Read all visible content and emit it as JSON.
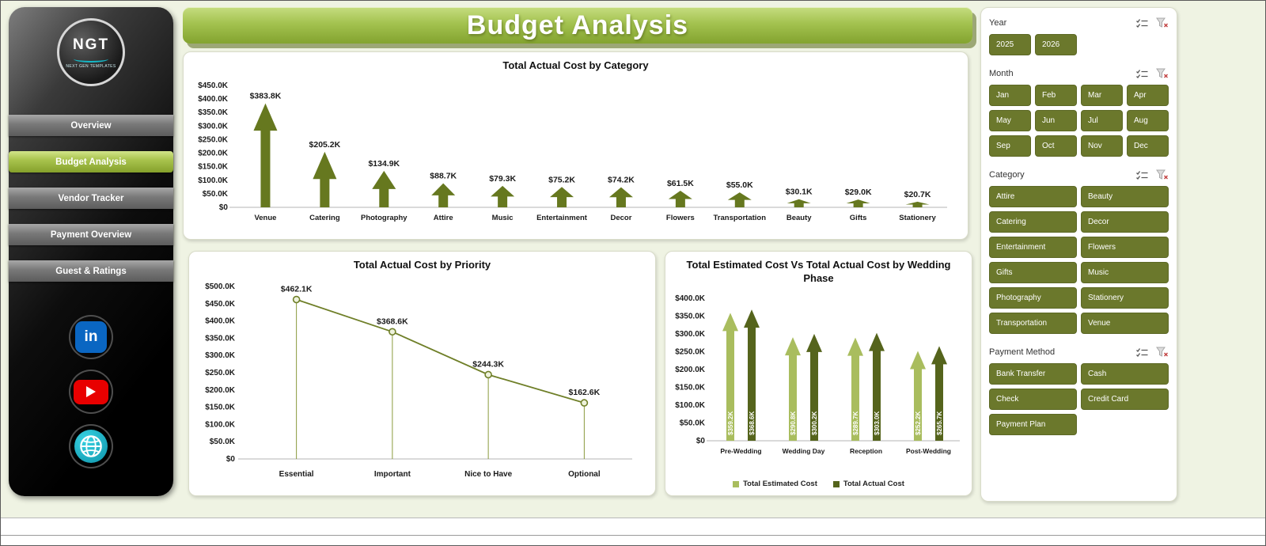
{
  "app": {
    "title": "Budget Analysis"
  },
  "sidebar": {
    "logo": {
      "text": "NGT",
      "tagline": "NEXT GEN TEMPLATES"
    },
    "items": [
      {
        "label": "Overview",
        "active": false
      },
      {
        "label": "Budget Analysis",
        "active": true
      },
      {
        "label": "Vendor Tracker",
        "active": false
      },
      {
        "label": "Payment Overview",
        "active": false
      },
      {
        "label": "Guest & Ratings",
        "active": false
      }
    ],
    "social": [
      {
        "name": "linkedin"
      },
      {
        "name": "youtube"
      },
      {
        "name": "web"
      }
    ]
  },
  "chart_data": [
    {
      "type": "bar",
      "title": "Total Actual Cost by Category",
      "categories": [
        "Venue",
        "Catering",
        "Photography",
        "Attire",
        "Music",
        "Entertainment",
        "Decor",
        "Flowers",
        "Transportation",
        "Beauty",
        "Gifts",
        "Stationery"
      ],
      "values": [
        383.8,
        205.2,
        134.9,
        88.7,
        79.3,
        75.2,
        74.2,
        61.5,
        55.0,
        30.1,
        29.0,
        20.7
      ],
      "value_labels": [
        "$383.8K",
        "$205.2K",
        "$134.9K",
        "$88.7K",
        "$79.3K",
        "$75.2K",
        "$74.2K",
        "$61.5K",
        "$55.0K",
        "$30.1K",
        "$29.0K",
        "$20.7K"
      ],
      "ylim": [
        0,
        450
      ],
      "ytick_step": 50,
      "ytick_labels": [
        "$0",
        "$50.0K",
        "$100.0K",
        "$150.0K",
        "$200.0K",
        "$250.0K",
        "$300.0K",
        "$350.0K",
        "$400.0K",
        "$450.0K"
      ],
      "bar_color": "#66781f",
      "grid": false
    },
    {
      "type": "line",
      "title": "Total Actual Cost by Priority",
      "categories": [
        "Essential",
        "Important",
        "Nice to Have",
        "Optional"
      ],
      "values": [
        462.1,
        368.6,
        244.3,
        162.6
      ],
      "value_labels": [
        "$462.1K",
        "$368.6K",
        "$244.3K",
        "$162.6K"
      ],
      "ylim": [
        0,
        500
      ],
      "ytick_step": 50,
      "ytick_labels": [
        "$0",
        "$50.0K",
        "$100.0K",
        "$150.0K",
        "$200.0K",
        "$250.0K",
        "$300.0K",
        "$350.0K",
        "$400.0K",
        "$450.0K",
        "$500.0K"
      ],
      "line_color": "#6f7f28",
      "marker_fill": "#eef2dc",
      "grid": false
    },
    {
      "type": "bar",
      "title": "Total Estimated Cost Vs Total Actual Cost by Wedding Phase",
      "categories": [
        "Pre-Wedding",
        "Wedding Day",
        "Reception",
        "Post-Wedding"
      ],
      "series": [
        {
          "name": "Total Estimated Cost",
          "color": "#a9bd5e",
          "values": [
            359.2,
            290.8,
            289.7,
            252.2
          ],
          "value_labels": [
            "$359.2K",
            "$290.8K",
            "$289.7K",
            "$252.2K"
          ]
        },
        {
          "name": "Total Actual Cost",
          "color": "#55641c",
          "values": [
            368.6,
            300.2,
            303.0,
            265.7
          ],
          "value_labels": [
            "$368.6K",
            "$300.2K",
            "$303.0K",
            "$265.7K"
          ]
        }
      ],
      "ylim": [
        0,
        400
      ],
      "ytick_step": 50,
      "ytick_labels": [
        "$0",
        "$50.0K",
        "$100.0K",
        "$150.0K",
        "$200.0K",
        "$250.0K",
        "$300.0K",
        "$350.0K",
        "$400.0K"
      ],
      "legend_position": "bottom",
      "grid": false
    }
  ],
  "filters": {
    "sections": [
      {
        "name": "Year",
        "columns": 4,
        "items": [
          "2025",
          "2026"
        ]
      },
      {
        "name": "Month",
        "columns": 4,
        "items": [
          "Jan",
          "Feb",
          "Mar",
          "Apr",
          "May",
          "Jun",
          "Jul",
          "Aug",
          "Sep",
          "Oct",
          "Nov",
          "Dec"
        ]
      },
      {
        "name": "Category",
        "columns": 2,
        "items": [
          "Attire",
          "Beauty",
          "Catering",
          "Decor",
          "Entertainment",
          "Flowers",
          "Gifts",
          "Music",
          "Photography",
          "Stationery",
          "Transportation",
          "Venue"
        ]
      },
      {
        "name": "Payment Method",
        "columns": 2,
        "items": [
          "Bank Transfer",
          "Cash",
          "Check",
          "Credit Card",
          "Payment Plan"
        ]
      }
    ]
  },
  "colors": {
    "page_bg": "#eff3e3",
    "slicer_button": "#6b782c",
    "banner_top": "#c6dd80",
    "banner_bottom": "#83a32f",
    "bar_olive": "#66781f",
    "series_light": "#a9bd5e",
    "series_dark": "#55641c"
  }
}
